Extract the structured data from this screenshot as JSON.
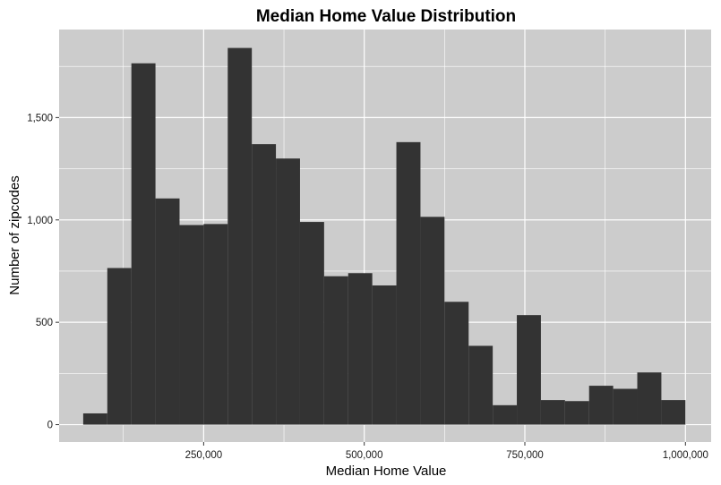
{
  "chart_data": {
    "type": "bar",
    "title": "Median Home Value Distribution",
    "xlabel": "Median Home Value",
    "ylabel": "Number of zipcodes",
    "xlim": [
      25000,
      1040000
    ],
    "ylim": [
      -85,
      1930
    ],
    "x_ticks": [
      250000,
      500000,
      750000,
      1000000
    ],
    "x_tick_labels": [
      "250,000",
      "500,000",
      "750,000",
      "1,000,000"
    ],
    "y_ticks": [
      0,
      500,
      1000,
      1500
    ],
    "y_tick_labels": [
      "0",
      "500",
      "1,000",
      "1,500"
    ],
    "bin_width": 37500,
    "bin_starts": [
      62500,
      100000,
      137500,
      175000,
      212500,
      250000,
      287500,
      325000,
      362500,
      400000,
      437500,
      475000,
      512500,
      550000,
      587500,
      625000,
      662500,
      700000,
      737500,
      775000,
      812500,
      850000,
      887500,
      925000,
      962500
    ],
    "values": [
      55,
      765,
      1765,
      1105,
      975,
      980,
      1840,
      1370,
      1300,
      990,
      725,
      740,
      680,
      1380,
      1015,
      600,
      385,
      95,
      535,
      120,
      115,
      190,
      175,
      255,
      120
    ],
    "grid": true,
    "bar_color": "#333333",
    "panel_background": "#cccccc",
    "grid_color": "#ffffff"
  }
}
